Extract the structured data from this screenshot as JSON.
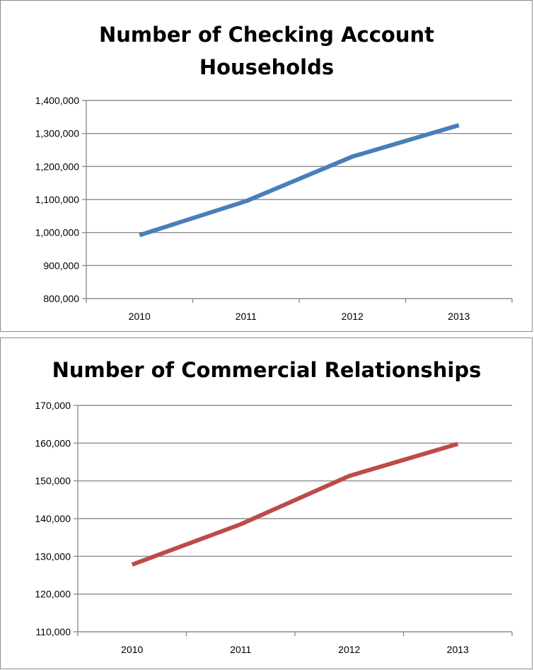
{
  "chart_data": [
    {
      "type": "line",
      "title_lines": [
        "Number of Checking Account",
        "Households"
      ],
      "xlabel": "",
      "ylabel": "",
      "categories": [
        "2010",
        "2011",
        "2012",
        "2013"
      ],
      "series": [
        {
          "values": [
            992000,
            1095000,
            1230000,
            1325000
          ],
          "color": "#4a7ebb"
        }
      ],
      "ylim": [
        800000,
        1400000
      ],
      "yticks": [
        800000,
        900000,
        1000000,
        1100000,
        1200000,
        1300000,
        1400000
      ],
      "ytick_labels": [
        "800,000",
        "900,000",
        "1,000,000",
        "1,100,000",
        "1,200,000",
        "1,300,000",
        "1,400,000"
      ],
      "grid": true,
      "legend": "none"
    },
    {
      "type": "line",
      "title_lines": [
        "Number of Commercial Relationships"
      ],
      "xlabel": "",
      "ylabel": "",
      "categories": [
        "2010",
        "2011",
        "2012",
        "2013"
      ],
      "series": [
        {
          "values": [
            127800,
            138500,
            151300,
            159800
          ],
          "color": "#be4b48"
        }
      ],
      "ylim": [
        110000,
        170000
      ],
      "yticks": [
        110000,
        120000,
        130000,
        140000,
        150000,
        160000,
        170000
      ],
      "ytick_labels": [
        "110,000",
        "120,000",
        "130,000",
        "140,000",
        "150,000",
        "160,000",
        "170,000"
      ],
      "grid": true,
      "legend": "none"
    }
  ]
}
